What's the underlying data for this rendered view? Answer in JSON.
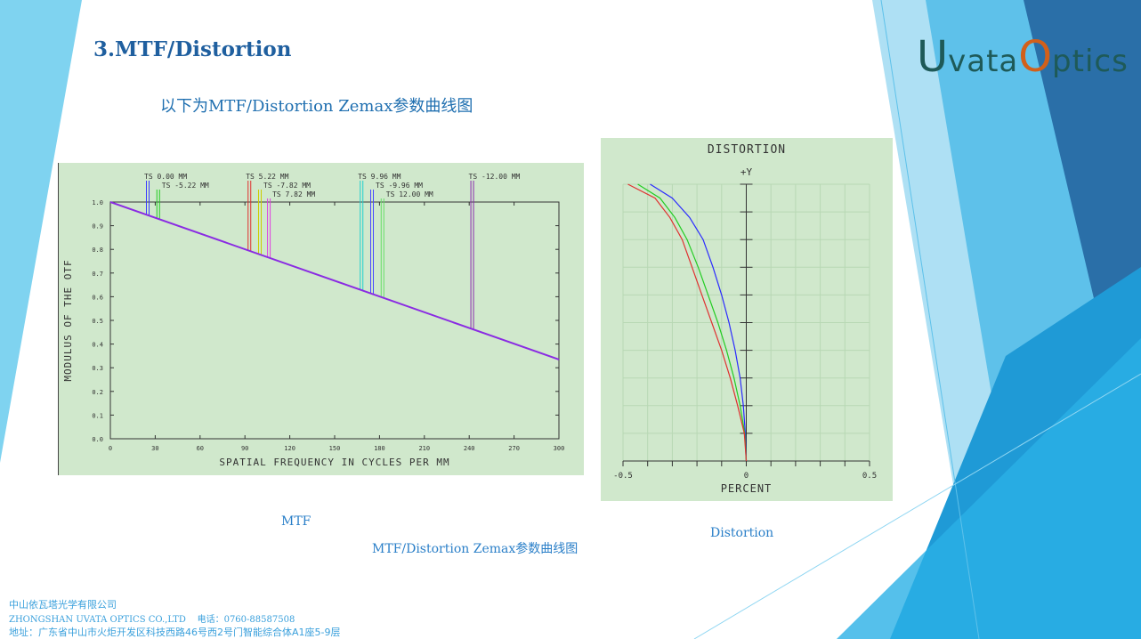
{
  "slide": {
    "title": "3.MTF/Distortion",
    "subtitle": "以下为MTF/Distortion Zemax参数曲线图"
  },
  "logo": {
    "first_initial": "U",
    "first_rest": "vata",
    "second_initial": "O",
    "second_rest": "ptics"
  },
  "captions": {
    "mtf": "MTF",
    "distortion": "Distortion",
    "figure": "MTF/Distortion Zemax参数曲线图"
  },
  "footer": {
    "company_cn": "中山依瓦塔光学有限公司",
    "company_en": "ZHONGSHAN UVATA OPTICS CO.,LTD",
    "phone": "电话：0760-88587508",
    "address": "地址：广东省中山市火炬开发区科技西路46号西2号门智能综合体A1座5-9层"
  },
  "colors": {
    "panel_bg": "#d0e8cc",
    "accent_blue": "#2a7fc8",
    "title_blue": "#1f5f9f"
  },
  "chart_data": [
    {
      "type": "line",
      "name": "MTF",
      "xlabel": "SPATIAL FREQUENCY IN CYCLES PER MM",
      "ylabel": "MODULUS OF THE OTF",
      "xlim": [
        0,
        300
      ],
      "ylim": [
        0,
        1.0
      ],
      "x_ticks": [
        "0",
        "30",
        "60",
        "90",
        "120",
        "150",
        "180",
        "210",
        "240",
        "270",
        "300"
      ],
      "y_ticks": [
        "0.0",
        "0.1",
        "0.2",
        "0.3",
        "0.4",
        "0.5",
        "0.6",
        "0.7",
        "0.8",
        "0.9",
        "1.0"
      ],
      "series": [
        {
          "name": "MTF",
          "color": "#8a2be2",
          "x": [
            0,
            300
          ],
          "y": [
            1.0,
            0.335
          ]
        }
      ],
      "field_markers": [
        {
          "label": "TS 0.00 MM",
          "x": 25,
          "colors": [
            "#3a3aff",
            "#3a3aff"
          ]
        },
        {
          "label": "TS -5.22 MM",
          "x": 32,
          "colors": [
            "#22cc22",
            "#22cc22"
          ]
        },
        {
          "label": "TS 5.22 MM",
          "x": 93,
          "colors": [
            "#e03030",
            "#e03030"
          ]
        },
        {
          "label": "TS -7.82 MM",
          "x": 100,
          "colors": [
            "#cccc00",
            "#cccc00"
          ]
        },
        {
          "label": "TS 7.82 MM",
          "x": 106,
          "colors": [
            "#e040e0",
            "#e040e0"
          ]
        },
        {
          "label": "TS 9.96 MM",
          "x": 168,
          "colors": [
            "#20d0d0",
            "#20d0d0"
          ]
        },
        {
          "label": "TS -9.96 MM",
          "x": 175,
          "colors": [
            "#4a4aff",
            "#4a4aff"
          ]
        },
        {
          "label": "TS 12.00 MM",
          "x": 182,
          "colors": [
            "#66dd66",
            "#66dd66"
          ]
        },
        {
          "label": "TS -12.00 MM",
          "x": 242,
          "colors": [
            "#8b2bb0",
            "#8b2bb0"
          ]
        }
      ]
    },
    {
      "type": "line",
      "title": "DISTORTION",
      "y_axis_label": "+Y",
      "xlabel": "PERCENT",
      "xlim": [
        -0.5,
        0.5
      ],
      "x_ticks": [
        "-0.5",
        "0",
        "0.5"
      ],
      "ylim": [
        0,
        1
      ],
      "series": [
        {
          "color": "#2a2aff",
          "points": [
            [
              0,
              0
            ],
            [
              -0.004,
              0.1
            ],
            [
              -0.012,
              0.2
            ],
            [
              -0.025,
              0.3
            ],
            [
              -0.045,
              0.4
            ],
            [
              -0.07,
              0.5
            ],
            [
              -0.1,
              0.6
            ],
            [
              -0.135,
              0.7
            ],
            [
              -0.175,
              0.8
            ],
            [
              -0.23,
              0.88
            ],
            [
              -0.3,
              0.95
            ],
            [
              -0.39,
              1.0
            ]
          ]
        },
        {
          "color": "#22cc22",
          "points": [
            [
              0,
              0
            ],
            [
              -0.006,
              0.1
            ],
            [
              -0.025,
              0.2
            ],
            [
              -0.05,
              0.3
            ],
            [
              -0.08,
              0.4
            ],
            [
              -0.115,
              0.5
            ],
            [
              -0.155,
              0.6
            ],
            [
              -0.195,
              0.7
            ],
            [
              -0.24,
              0.8
            ],
            [
              -0.29,
              0.88
            ],
            [
              -0.35,
              0.95
            ],
            [
              -0.44,
              1.0
            ]
          ]
        },
        {
          "color": "#e03030",
          "points": [
            [
              0,
              0
            ],
            [
              -0.008,
              0.1
            ],
            [
              -0.035,
              0.2
            ],
            [
              -0.065,
              0.3
            ],
            [
              -0.1,
              0.4
            ],
            [
              -0.14,
              0.5
            ],
            [
              -0.18,
              0.6
            ],
            [
              -0.22,
              0.7
            ],
            [
              -0.26,
              0.8
            ],
            [
              -0.31,
              0.88
            ],
            [
              -0.37,
              0.95
            ],
            [
              -0.48,
              1.0
            ]
          ]
        }
      ]
    }
  ]
}
